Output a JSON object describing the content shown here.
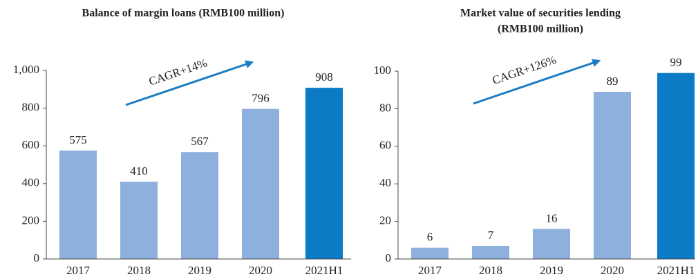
{
  "chart_data": [
    {
      "type": "bar",
      "title": [
        "Balance of margin loans (RMB100 million)"
      ],
      "categories": [
        "2017",
        "2018",
        "2019",
        "2020",
        "2021H1"
      ],
      "values": [
        575,
        410,
        567,
        796,
        908
      ],
      "colors": [
        "#8eb0dc",
        "#8eb0dc",
        "#8eb0dc",
        "#8eb0dc",
        "#0a7bc4"
      ],
      "ylim": [
        0,
        1000
      ],
      "yticks": [
        0,
        200,
        400,
        600,
        800,
        {
          "value": 1000,
          "label": "1,000"
        }
      ],
      "annotation": "CAGR+14%"
    },
    {
      "type": "bar",
      "title": [
        "Market value of securities lending",
        "(RMB100 million)"
      ],
      "categories": [
        "2017",
        "2018",
        "2019",
        "2020",
        "2021H1"
      ],
      "values": [
        6,
        7,
        16,
        89,
        99
      ],
      "colors": [
        "#8eb0dc",
        "#8eb0dc",
        "#8eb0dc",
        "#8eb0dc",
        "#0a7bc4"
      ],
      "ylim": [
        0,
        100
      ],
      "yticks": [
        0,
        20,
        40,
        60,
        80,
        100
      ],
      "annotation": "CAGR+126%"
    }
  ]
}
